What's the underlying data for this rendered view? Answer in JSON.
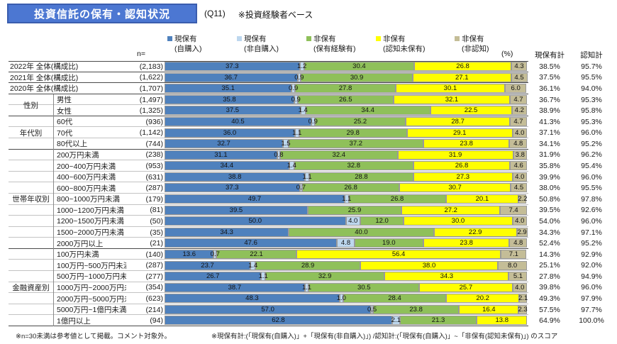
{
  "header": {
    "title": "投資信託の保有・認知状況",
    "question": "(Q11)",
    "base_note": "※投資経験者ベース"
  },
  "columns": {
    "n_label": "n=",
    "percent_label": "(%)",
    "hold_total_label": "現保有計",
    "aware_total_label": "認知計"
  },
  "legend": {
    "items": [
      {
        "name": "current-own-self",
        "line1": "現保有",
        "line2": "(自購入)",
        "color": "#4f81bd"
      },
      {
        "name": "current-own-not-self",
        "line1": "現保有",
        "line2": "(非自購入)",
        "color": "#bdd7ee"
      },
      {
        "name": "not-own-experienced",
        "line1": "非保有",
        "line2": "(保有経験有)",
        "color": "#8fc05a"
      },
      {
        "name": "not-own-aware",
        "line1": "非保有",
        "line2": "(認知未保有)",
        "color": "#ffff00"
      },
      {
        "name": "not-own-unaware",
        "line1": "非保有",
        "line2": "(非認知)",
        "color": "#c4bd97"
      }
    ]
  },
  "chart_data": {
    "type": "bar",
    "orientation": "horizontal",
    "stacked": true,
    "unit": "%",
    "xlim": [
      0,
      100
    ],
    "title": "投資信託の保有・認知状況",
    "series_names": [
      "現保有(自購入)",
      "現保有(非自購入)",
      "非保有(保有経験有)",
      "非保有(認知未保有)",
      "非保有(非認知)"
    ],
    "series_colors": [
      "#4f81bd",
      "#bdd7ee",
      "#8fc05a",
      "#ffff00",
      "#c4bd97"
    ],
    "groups": [
      {
        "label": "性別",
        "start": 3,
        "end": 4
      },
      {
        "label": "年代別",
        "start": 5,
        "end": 7
      },
      {
        "label": "世帯年収別",
        "start": 8,
        "end": 16
      },
      {
        "label": "金融資産別",
        "start": 17,
        "end": 23
      }
    ],
    "rows": [
      {
        "label": "2022年 全体(構成比)",
        "n": "(2,183)",
        "values": [
          37.3,
          1.2,
          30.4,
          26.8,
          4.3
        ],
        "hold_total": "38.5%",
        "aware_total": "95.7%"
      },
      {
        "label": "2021年 全体(構成比)",
        "n": "(1,622)",
        "values": [
          36.7,
          0.9,
          30.9,
          27.1,
          4.5
        ],
        "hold_total": "37.5%",
        "aware_total": "95.5%"
      },
      {
        "label": "2020年 全体(構成比)",
        "n": "(1,707)",
        "values": [
          35.1,
          0.9,
          27.8,
          30.1,
          6.0
        ],
        "hold_total": "36.1%",
        "aware_total": "94.0%"
      },
      {
        "label": "男性",
        "n": "(1,497)",
        "values": [
          35.8,
          0.9,
          26.5,
          32.1,
          4.7
        ],
        "hold_total": "36.7%",
        "aware_total": "95.3%"
      },
      {
        "label": "女性",
        "n": "(1,325)",
        "values": [
          37.5,
          1.4,
          34.4,
          22.5,
          4.2
        ],
        "hold_total": "38.9%",
        "aware_total": "95.8%"
      },
      {
        "label": "60代",
        "n": "(936)",
        "values": [
          40.5,
          0.9,
          25.2,
          28.7,
          4.7
        ],
        "hold_total": "41.3%",
        "aware_total": "95.3%"
      },
      {
        "label": "70代",
        "n": "(1,142)",
        "values": [
          36.0,
          1.1,
          29.8,
          29.1,
          4.0
        ],
        "hold_total": "37.1%",
        "aware_total": "96.0%"
      },
      {
        "label": "80代以上",
        "n": "(744)",
        "values": [
          32.7,
          1.5,
          37.2,
          23.8,
          4.8
        ],
        "hold_total": "34.1%",
        "aware_total": "95.2%"
      },
      {
        "label": "200万円未満",
        "n": "(238)",
        "values": [
          31.1,
          0.8,
          32.4,
          31.9,
          3.8
        ],
        "hold_total": "31.9%",
        "aware_total": "96.2%"
      },
      {
        "label": "200~400万円未満",
        "n": "(953)",
        "values": [
          34.4,
          1.4,
          32.8,
          26.8,
          4.6
        ],
        "hold_total": "35.8%",
        "aware_total": "95.4%"
      },
      {
        "label": "400~600万円未満",
        "n": "(631)",
        "values": [
          38.8,
          1.1,
          28.8,
          27.3,
          4.0
        ],
        "hold_total": "39.9%",
        "aware_total": "96.0%"
      },
      {
        "label": "600~800万円未満",
        "n": "(287)",
        "values": [
          37.3,
          0.7,
          26.8,
          30.7,
          4.5
        ],
        "hold_total": "38.0%",
        "aware_total": "95.5%"
      },
      {
        "label": "800~1000万円未満",
        "n": "(179)",
        "values": [
          49.7,
          1.1,
          26.8,
          20.1,
          2.2
        ],
        "hold_total": "50.8%",
        "aware_total": "97.8%"
      },
      {
        "label": "1000~1200万円未満",
        "n": "(81)",
        "values": [
          39.5,
          0,
          25.9,
          27.2,
          7.4
        ],
        "hold_total": "39.5%",
        "aware_total": "92.6%"
      },
      {
        "label": "1200~1500万円未満",
        "n": "(50)",
        "values": [
          50.0,
          4.0,
          12.0,
          30.0,
          4.0
        ],
        "hold_total": "54.0%",
        "aware_total": "96.0%"
      },
      {
        "label": "1500~2000万円未満",
        "n": "(35)",
        "values": [
          34.3,
          0,
          40.0,
          22.9,
          2.9
        ],
        "hold_total": "34.3%",
        "aware_total": "97.1%"
      },
      {
        "label": "2000万円以上",
        "n": "(21)",
        "values": [
          47.6,
          4.8,
          19.0,
          23.8,
          4.8
        ],
        "hold_total": "52.4%",
        "aware_total": "95.2%"
      },
      {
        "label": "100万円未満",
        "n": "(140)",
        "values": [
          13.6,
          0.7,
          22.1,
          56.4,
          7.1
        ],
        "hold_total": "14.3%",
        "aware_total": "92.9%"
      },
      {
        "label": "100万円~500万円未満",
        "n": "(287)",
        "values": [
          23.7,
          1.4,
          28.9,
          38.0,
          8.0
        ],
        "hold_total": "25.1%",
        "aware_total": "92.0%"
      },
      {
        "label": "500万円~1000万円未満",
        "n": "(277)",
        "values": [
          26.7,
          1.1,
          32.9,
          34.3,
          5.1
        ],
        "hold_total": "27.8%",
        "aware_total": "94.9%"
      },
      {
        "label": "1000万円~2000万円未満",
        "n": "(354)",
        "values": [
          38.7,
          1.1,
          30.5,
          25.7,
          4.0
        ],
        "hold_total": "39.8%",
        "aware_total": "96.0%"
      },
      {
        "label": "2000万円~5000万円未満",
        "n": "(623)",
        "values": [
          48.3,
          1.0,
          28.4,
          20.2,
          2.1
        ],
        "hold_total": "49.3%",
        "aware_total": "97.9%"
      },
      {
        "label": "5000万円~1億円未満",
        "n": "(214)",
        "values": [
          57.0,
          0.5,
          23.8,
          16.4,
          2.3
        ],
        "hold_total": "57.5%",
        "aware_total": "97.7%"
      },
      {
        "label": "1億円以上",
        "n": "(94)",
        "values": [
          62.8,
          2.1,
          21.3,
          13.8,
          0
        ],
        "hold_total": "64.9%",
        "aware_total": "100.0%"
      }
    ]
  },
  "footnotes": {
    "left": "※n=30未満は参考値として掲載。コメント対象外。",
    "right": "※現保有計:(「現保有(自購入)」+「現保有(非自購入)」) /認知計:(「現保有(自購入)」~「非保有(認知未保有)」) のスコア"
  }
}
